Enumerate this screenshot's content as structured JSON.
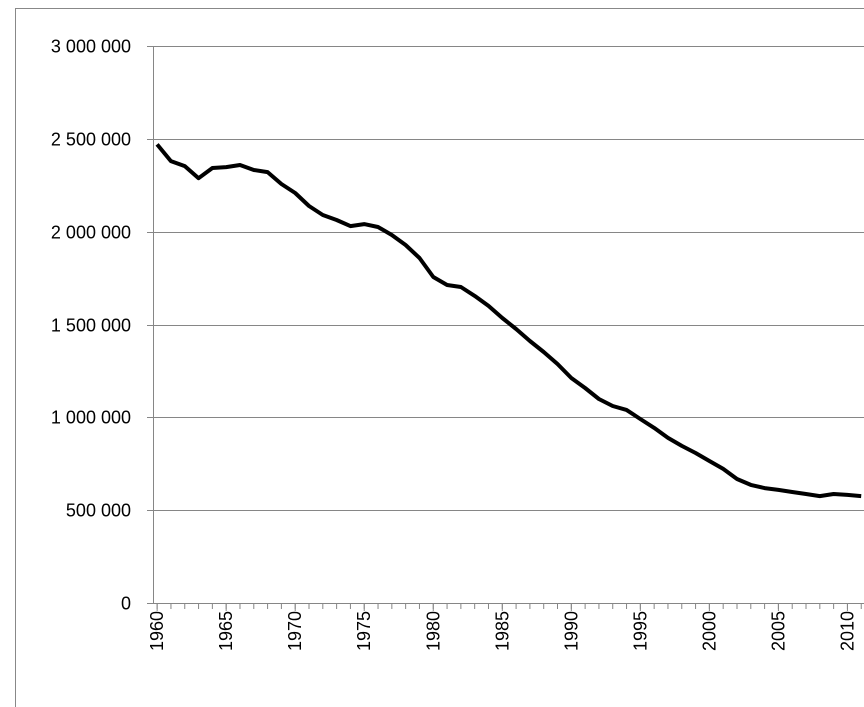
{
  "chart_data": {
    "type": "line",
    "x": [
      1960,
      1961,
      1962,
      1963,
      1964,
      1965,
      1966,
      1967,
      1968,
      1969,
      1970,
      1971,
      1972,
      1973,
      1974,
      1975,
      1976,
      1977,
      1978,
      1979,
      1980,
      1981,
      1982,
      1983,
      1984,
      1985,
      1986,
      1987,
      1988,
      1989,
      1990,
      1991,
      1992,
      1993,
      1994,
      1995,
      1996,
      1997,
      1998,
      1999,
      2000,
      2001,
      2002,
      2003,
      2004,
      2005,
      2006,
      2007,
      2008,
      2009,
      2010,
      2011
    ],
    "series": [
      {
        "color": "#000000",
        "values": [
          2470000,
          2380000,
          2353000,
          2288000,
          2343000,
          2348000,
          2359000,
          2332000,
          2321000,
          2257000,
          2208000,
          2138000,
          2090000,
          2063000,
          2030000,
          2041000,
          2025000,
          1982000,
          1928000,
          1858000,
          1756000,
          1713000,
          1702000,
          1654000,
          1600000,
          1535000,
          1476000,
          1411000,
          1352000,
          1287000,
          1212000,
          1158000,
          1099000,
          1061000,
          1040000,
          991000,
          943000,
          889000,
          846000,
          808000,
          765000,
          722000,
          668000,
          636000,
          619000,
          609000,
          598000,
          587000,
          576000,
          587000,
          582000,
          576000
        ]
      }
    ],
    "xlim": [
      1959.7,
      2011.2
    ],
    "xticks": [
      1960,
      1965,
      1970,
      1975,
      1980,
      1985,
      1990,
      1995,
      2000,
      2005,
      2010
    ],
    "ylim": [
      0,
      3000000
    ],
    "yticks": [
      0,
      {
        "value": 500000,
        "label": "500 000"
      },
      {
        "value": 1000000,
        "label": "1 000 000"
      },
      {
        "value": 1500000,
        "label": "1 500 000"
      },
      {
        "value": 2000000,
        "label": "2 000 000"
      },
      {
        "value": 2500000,
        "label": "2 500 000"
      },
      {
        "value": 3000000,
        "label": "3 000 000"
      }
    ],
    "grid": true
  }
}
